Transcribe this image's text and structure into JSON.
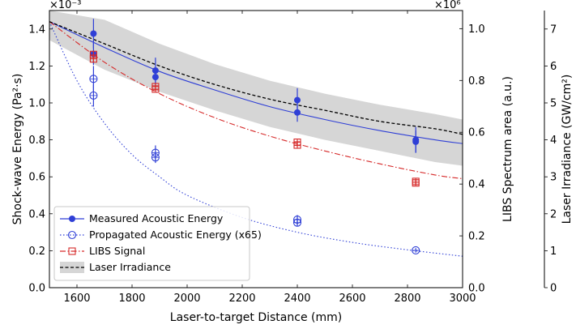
{
  "chart_data": {
    "type": "line",
    "title": "",
    "x_axis": {
      "label": "Laser-to-target Distance (mm)",
      "range": [
        1500,
        3000
      ],
      "ticks": [
        1600,
        1800,
        2000,
        2200,
        2400,
        2600,
        2800,
        3000
      ]
    },
    "y_axes": {
      "left": {
        "label": "Shock-wave Energy (Pa²·s)",
        "multiplier": "×10⁻³",
        "range": [
          0,
          1.5
        ],
        "ticks": [
          "0.0",
          "0.2",
          "0.4",
          "0.6",
          "0.8",
          "1.0",
          "1.2",
          "1.4"
        ]
      },
      "right1": {
        "label": "LIBS Spectrum area (a.u.)",
        "multiplier": "×10⁶",
        "range": [
          0,
          1.07
        ],
        "ticks": [
          "0.0",
          "0.2",
          "0.4",
          "0.6",
          "0.8",
          "1.0"
        ]
      },
      "right2": {
        "label": "Laser Irradiance (GW/cm²)",
        "range": [
          0,
          7.5
        ],
        "ticks": [
          "0",
          "1",
          "2",
          "3",
          "4",
          "5",
          "6",
          "7"
        ]
      }
    },
    "legend": {
      "placement": "bottom-left",
      "entries": [
        "Measured Acoustic Energy",
        "Propagated Acoustic Energy (x65)",
        "LIBS Signal",
        "Laser Irradiance"
      ]
    },
    "band": {
      "x": [
        1500,
        1700,
        1900,
        2100,
        2300,
        2500,
        2700,
        2900,
        3000
      ],
      "lower": [
        1.34,
        1.18,
        1.06,
        0.96,
        0.87,
        0.8,
        0.74,
        0.68,
        0.66
      ],
      "upper": [
        1.5,
        1.45,
        1.32,
        1.21,
        1.12,
        1.05,
        0.99,
        0.94,
        0.91
      ]
    },
    "series": [
      {
        "name": "Measured Acoustic Energy",
        "color": "#2f3fd6",
        "marker": "filled-circle",
        "fit": {
          "x": [
            1500,
            1700,
            1900,
            2100,
            2300,
            2500,
            2700,
            2900,
            3000
          ],
          "y": [
            1.44,
            1.3,
            1.17,
            1.07,
            0.98,
            0.91,
            0.85,
            0.8,
            0.78
          ]
        },
        "points": [
          {
            "x": 1660,
            "y": 1.375,
            "err": 0.08
          },
          {
            "x": 1660,
            "y": 1.265,
            "err": 0.06
          },
          {
            "x": 1885,
            "y": 1.175,
            "err": 0.07
          },
          {
            "x": 1885,
            "y": 1.14,
            "err": 0.05
          },
          {
            "x": 2400,
            "y": 1.015,
            "err": 0.065
          },
          {
            "x": 2400,
            "y": 0.948,
            "err": 0.05
          },
          {
            "x": 2830,
            "y": 0.8,
            "err": 0.07
          },
          {
            "x": 2830,
            "y": 0.79,
            "err": 0.06
          }
        ]
      },
      {
        "name": "Propagated Acoustic Energy (x65)",
        "color": "#2f3fd6",
        "marker": "open-circle",
        "fit": {
          "x": [
            1500,
            1600,
            1700,
            1800,
            1900,
            2000,
            2200,
            2400,
            2600,
            2800,
            3000
          ],
          "y": [
            1.44,
            1.12,
            0.89,
            0.72,
            0.6,
            0.5,
            0.38,
            0.3,
            0.245,
            0.205,
            0.17
          ]
        },
        "points": [
          {
            "x": 1660,
            "y": 1.13,
            "err": 0.07
          },
          {
            "x": 1660,
            "y": 1.04,
            "err": 0.06
          },
          {
            "x": 1885,
            "y": 0.73,
            "err": 0.04
          },
          {
            "x": 1885,
            "y": 0.705,
            "err": 0.03
          },
          {
            "x": 2400,
            "y": 0.368,
            "err": 0.025
          },
          {
            "x": 2400,
            "y": 0.352,
            "err": 0.02
          },
          {
            "x": 2830,
            "y": 0.202,
            "err": 0.012
          }
        ]
      },
      {
        "name": "LIBS Signal",
        "color": "#d62a2a",
        "marker": "open-square",
        "fit": {
          "x": [
            1500,
            1700,
            1900,
            2100,
            2300,
            2500,
            2700,
            2900,
            3000
          ],
          "y": [
            1.44,
            1.22,
            1.05,
            0.92,
            0.82,
            0.74,
            0.67,
            0.61,
            0.59
          ]
        },
        "points": [
          {
            "x": 1660,
            "y": 1.262,
            "err": 0.02
          },
          {
            "x": 1660,
            "y": 1.238,
            "err": 0.02
          },
          {
            "x": 1885,
            "y": 1.088,
            "err": 0.015
          },
          {
            "x": 1885,
            "y": 1.075,
            "err": 0.015
          },
          {
            "x": 2400,
            "y": 0.787,
            "err": 0.015
          },
          {
            "x": 2400,
            "y": 0.772,
            "err": 0.015
          },
          {
            "x": 2830,
            "y": 0.575,
            "err": 0.015
          },
          {
            "x": 2830,
            "y": 0.567,
            "err": 0.015
          }
        ]
      },
      {
        "name": "Laser Irradiance",
        "color": "#000000",
        "marker": "none",
        "fit": {
          "x": [
            1500,
            1700,
            1900,
            2100,
            2300,
            2500,
            2700,
            2900,
            3000
          ],
          "y": [
            1.44,
            1.32,
            1.2,
            1.1,
            1.02,
            0.96,
            0.9,
            0.86,
            0.83
          ]
        },
        "points": []
      }
    ]
  }
}
